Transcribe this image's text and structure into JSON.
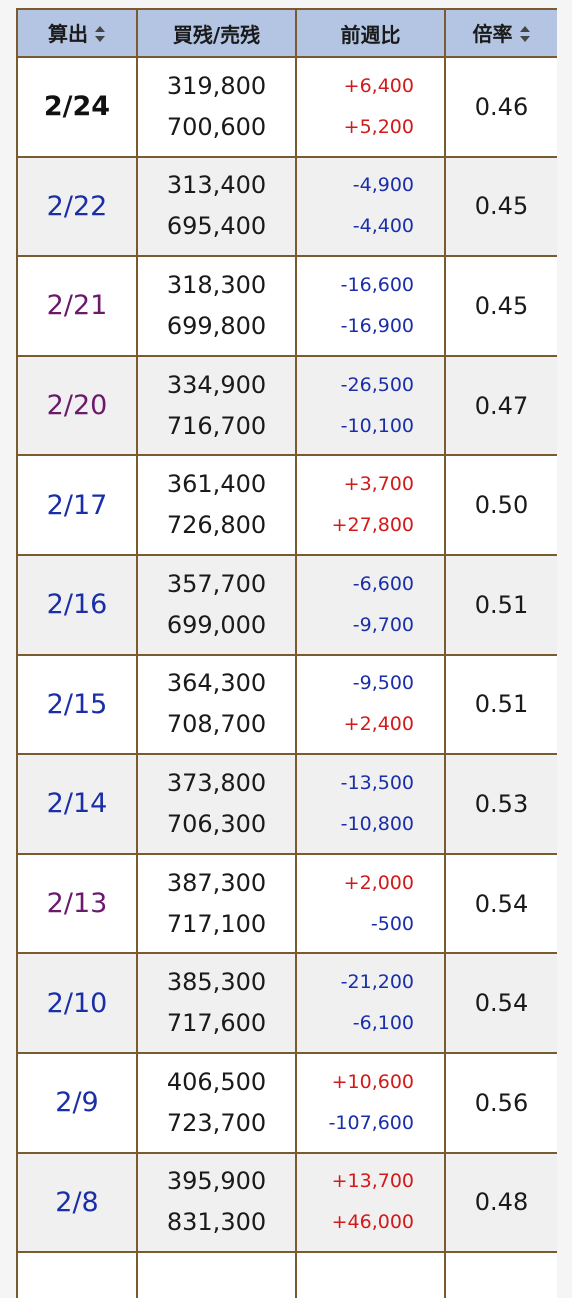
{
  "header": {
    "col_date": "算出",
    "col_balance": "買残/売残",
    "col_change": "前週比",
    "col_ratio": "倍率"
  },
  "colors": {
    "header_bg": "#b3c5e3",
    "border": "#7a5a30",
    "positive": "#d21a1a",
    "negative": "#1a2ea8",
    "weekday": "#1a2ea8",
    "friday": "#6b1a6b"
  },
  "rows": [
    {
      "date": "2/24",
      "date_style": "bold",
      "buy": "319,800",
      "sell": "700,600",
      "buy_change": "+6,400",
      "sell_change": "+5,200",
      "ratio": "0.46"
    },
    {
      "date": "2/22",
      "date_style": "blue",
      "buy": "313,400",
      "sell": "695,400",
      "buy_change": "-4,900",
      "sell_change": "-4,400",
      "ratio": "0.45"
    },
    {
      "date": "2/21",
      "date_style": "purple",
      "buy": "318,300",
      "sell": "699,800",
      "buy_change": "-16,600",
      "sell_change": "-16,900",
      "ratio": "0.45"
    },
    {
      "date": "2/20",
      "date_style": "purple",
      "buy": "334,900",
      "sell": "716,700",
      "buy_change": "-26,500",
      "sell_change": "-10,100",
      "ratio": "0.47"
    },
    {
      "date": "2/17",
      "date_style": "blue",
      "buy": "361,400",
      "sell": "726,800",
      "buy_change": "+3,700",
      "sell_change": "+27,800",
      "ratio": "0.50"
    },
    {
      "date": "2/16",
      "date_style": "blue",
      "buy": "357,700",
      "sell": "699,000",
      "buy_change": "-6,600",
      "sell_change": "-9,700",
      "ratio": "0.51"
    },
    {
      "date": "2/15",
      "date_style": "blue",
      "buy": "364,300",
      "sell": "708,700",
      "buy_change": "-9,500",
      "sell_change": "+2,400",
      "ratio": "0.51"
    },
    {
      "date": "2/14",
      "date_style": "blue",
      "buy": "373,800",
      "sell": "706,300",
      "buy_change": "-13,500",
      "sell_change": "-10,800",
      "ratio": "0.53"
    },
    {
      "date": "2/13",
      "date_style": "purple",
      "buy": "387,300",
      "sell": "717,100",
      "buy_change": "+2,000",
      "sell_change": "-500",
      "ratio": "0.54"
    },
    {
      "date": "2/10",
      "date_style": "blue",
      "buy": "385,300",
      "sell": "717,600",
      "buy_change": "-21,200",
      "sell_change": "-6,100",
      "ratio": "0.54"
    },
    {
      "date": "2/9",
      "date_style": "blue",
      "buy": "406,500",
      "sell": "723,700",
      "buy_change": "+10,600",
      "sell_change": "-107,600",
      "ratio": "0.56"
    },
    {
      "date": "2/8",
      "date_style": "blue",
      "buy": "395,900",
      "sell": "831,300",
      "buy_change": "+13,700",
      "sell_change": "+46,000",
      "ratio": "0.48"
    },
    {
      "date": "",
      "date_style": "blue",
      "buy": "",
      "sell": "",
      "buy_change": "",
      "sell_change": "",
      "ratio": ""
    }
  ]
}
